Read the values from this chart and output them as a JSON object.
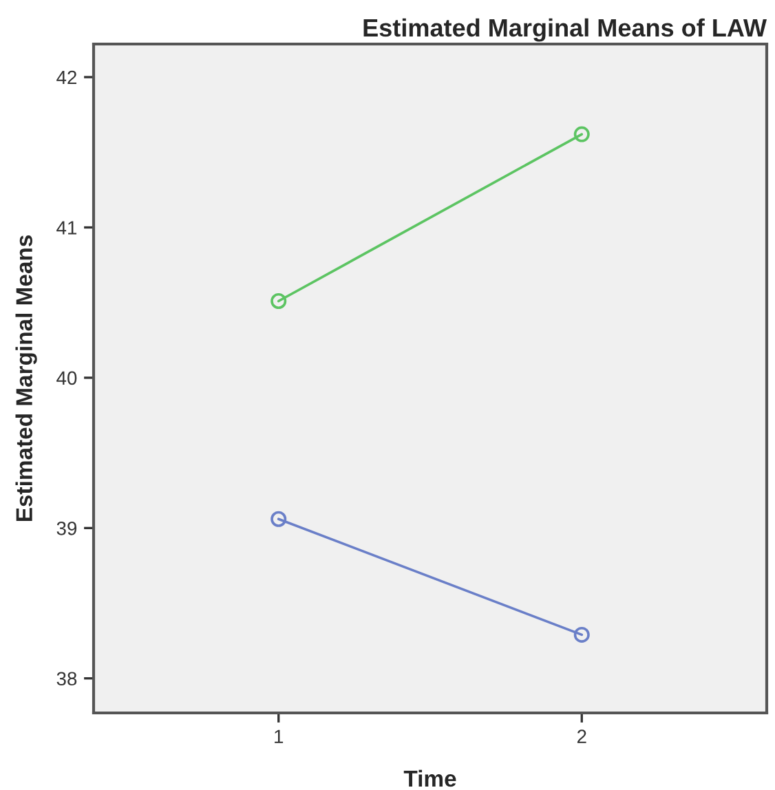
{
  "chart_data": {
    "type": "line",
    "title": "Estimated Marginal Means of LAW",
    "xlabel": "Time",
    "ylabel": "Estimated Marginal Means",
    "categories": [
      "1",
      "2"
    ],
    "series": [
      {
        "color": "#5cc462",
        "values": [
          40.51,
          41.62
        ]
      },
      {
        "color": "#6a7fc8",
        "values": [
          39.06,
          38.29
        ]
      }
    ],
    "ylim": [
      37.77,
      42.22
    ],
    "yticks": [
      38,
      39,
      40,
      41,
      42
    ],
    "grid": false,
    "marker": "circle",
    "line_style": "solid"
  }
}
